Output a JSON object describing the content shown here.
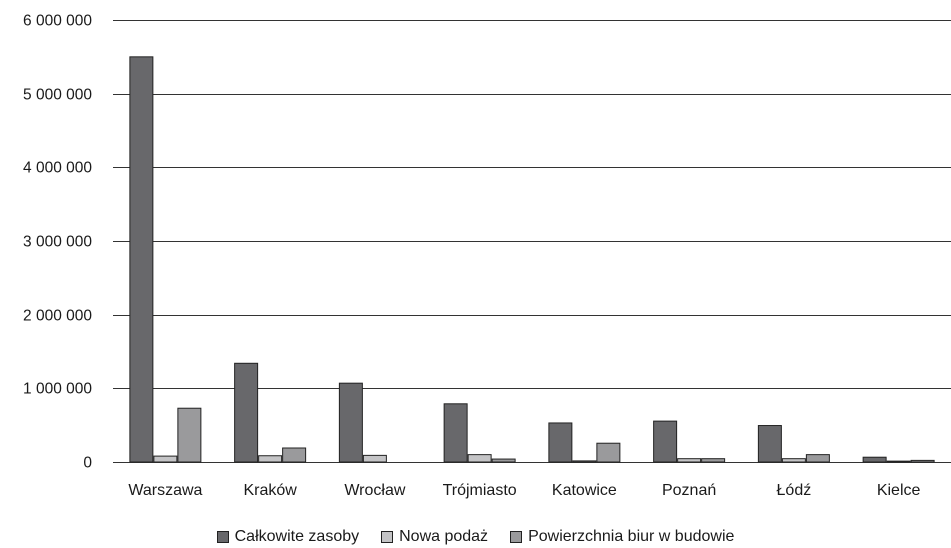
{
  "chart_data": {
    "type": "bar",
    "title": "",
    "xlabel": "",
    "ylabel": "",
    "categories": [
      "Warszawa",
      "Kraków",
      "Wrocław",
      "Trójmiasto",
      "Katowice",
      "Poznań",
      "Łódź",
      "Kielce"
    ],
    "series": [
      {
        "name": "Całkowite zasoby",
        "color": "#68686b",
        "values": [
          5500000,
          1340000,
          1070000,
          790000,
          530000,
          555000,
          495000,
          65000
        ]
      },
      {
        "name": "Nowa podaż",
        "color": "#c4c4c6",
        "values": [
          80000,
          85000,
          90000,
          100000,
          15000,
          45000,
          45000,
          12000
        ]
      },
      {
        "name": "Powierzchnia biur w budowie",
        "color": "#9a9a9c",
        "values": [
          730000,
          190000,
          0,
          40000,
          255000,
          45000,
          100000,
          22000
        ]
      }
    ],
    "ylim": [
      0,
      6000000
    ],
    "yticks": [
      {
        "value": 0,
        "label": "0"
      },
      {
        "value": 1000000,
        "label": "1 000 000"
      },
      {
        "value": 2000000,
        "label": "2 000 000"
      },
      {
        "value": 3000000,
        "label": "3 000 000"
      },
      {
        "value": 4000000,
        "label": "4 000 000"
      },
      {
        "value": 5000000,
        "label": "5 000 000"
      },
      {
        "value": 6000000,
        "label": "6 000 000"
      }
    ],
    "grid": true,
    "legend_position": "bottom"
  }
}
